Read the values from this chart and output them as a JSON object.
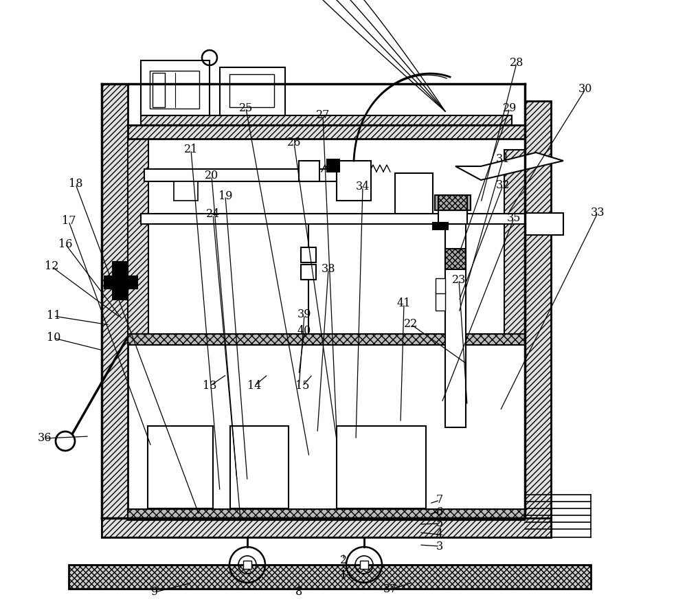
{
  "bg_color": "#ffffff",
  "line_color": "#000000",
  "labels_data": [
    [
      "1",
      500,
      44,
      500,
      54
    ],
    [
      "2",
      500,
      67,
      500,
      77
    ],
    [
      "3",
      640,
      87,
      610,
      89
    ],
    [
      "4",
      640,
      104,
      610,
      107
    ],
    [
      "5",
      640,
      120,
      610,
      119
    ],
    [
      "6",
      640,
      137,
      625,
      134
    ],
    [
      "7",
      640,
      154,
      625,
      149
    ],
    [
      "8",
      435,
      20,
      435,
      34
    ],
    [
      "9",
      225,
      20,
      280,
      34
    ],
    [
      "10",
      78,
      390,
      150,
      372
    ],
    [
      "11",
      78,
      422,
      160,
      409
    ],
    [
      "12",
      75,
      494,
      175,
      420
    ],
    [
      "13",
      305,
      320,
      330,
      337
    ],
    [
      "14",
      370,
      320,
      390,
      337
    ],
    [
      "15",
      440,
      320,
      455,
      337
    ],
    [
      "16",
      95,
      527,
      178,
      417
    ],
    [
      "17",
      100,
      560,
      220,
      232
    ],
    [
      "18",
      110,
      614,
      290,
      132
    ],
    [
      "19",
      328,
      597,
      360,
      182
    ],
    [
      "20",
      308,
      626,
      345,
      182
    ],
    [
      "21",
      278,
      664,
      320,
      167
    ],
    [
      "22",
      598,
      410,
      680,
      352
    ],
    [
      "23",
      668,
      474,
      680,
      292
    ],
    [
      "24",
      310,
      570,
      350,
      127
    ],
    [
      "25",
      358,
      724,
      450,
      217
    ],
    [
      "26",
      428,
      674,
      490,
      242
    ],
    [
      "27",
      470,
      714,
      490,
      252
    ],
    [
      "28",
      752,
      790,
      700,
      587
    ],
    [
      "29",
      742,
      724,
      668,
      512
    ],
    [
      "30",
      852,
      752,
      740,
      572
    ],
    [
      "31",
      732,
      650,
      668,
      427
    ],
    [
      "32",
      732,
      612,
      668,
      444
    ],
    [
      "33",
      870,
      572,
      728,
      284
    ],
    [
      "34",
      528,
      610,
      518,
      242
    ],
    [
      "35",
      748,
      564,
      643,
      296
    ],
    [
      "36",
      65,
      244,
      130,
      247
    ],
    [
      "37",
      568,
      24,
      600,
      34
    ],
    [
      "38",
      478,
      490,
      462,
      252
    ],
    [
      "39",
      443,
      424,
      435,
      317
    ],
    [
      "40",
      443,
      400,
      435,
      337
    ],
    [
      "41",
      588,
      440,
      583,
      267
    ]
  ]
}
